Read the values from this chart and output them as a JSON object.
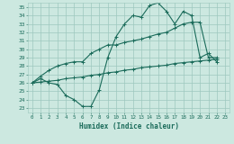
{
  "xlabel": "Humidex (Indice chaleur)",
  "bg_color": "#cce8e0",
  "grid_color": "#9ec8be",
  "line_color": "#1a6b5a",
  "xlim": [
    -0.5,
    23.5
  ],
  "ylim": [
    22.5,
    35.5
  ],
  "yticks": [
    23,
    24,
    25,
    26,
    27,
    28,
    29,
    30,
    31,
    32,
    33,
    34,
    35
  ],
  "xticks": [
    0,
    1,
    2,
    3,
    4,
    5,
    6,
    7,
    8,
    9,
    10,
    11,
    12,
    13,
    14,
    15,
    16,
    17,
    18,
    19,
    20,
    21,
    22,
    23
  ],
  "line1_x": [
    0,
    1,
    2,
    3,
    4,
    5,
    6,
    7,
    8,
    9,
    10,
    11,
    12,
    13,
    14,
    15,
    16,
    17,
    18,
    19,
    20,
    21,
    22
  ],
  "line1_y": [
    26.0,
    26.5,
    26.0,
    25.8,
    24.5,
    24.0,
    23.2,
    23.2,
    25.2,
    29.0,
    31.5,
    33.0,
    34.0,
    33.8,
    35.2,
    35.5,
    34.5,
    33.0,
    34.5,
    34.0,
    29.0,
    29.5,
    28.5
  ],
  "line2_x": [
    0,
    1,
    2,
    3,
    4,
    5,
    6,
    7,
    8,
    9,
    10,
    11,
    12,
    13,
    14,
    15,
    16,
    17,
    18,
    19,
    20,
    21,
    22
  ],
  "line2_y": [
    26.0,
    26.8,
    27.5,
    28.0,
    28.3,
    28.5,
    28.5,
    29.5,
    30.0,
    30.5,
    30.5,
    30.8,
    31.0,
    31.2,
    31.5,
    31.8,
    32.0,
    32.5,
    33.0,
    33.2,
    33.2,
    29.0,
    29.0
  ],
  "line3_x": [
    0,
    1,
    2,
    3,
    4,
    5,
    6,
    7,
    8,
    9,
    10,
    11,
    12,
    13,
    14,
    15,
    16,
    17,
    18,
    19,
    20,
    21,
    22
  ],
  "line3_y": [
    26.0,
    26.1,
    26.2,
    26.3,
    26.5,
    26.6,
    26.7,
    26.9,
    27.0,
    27.2,
    27.3,
    27.5,
    27.6,
    27.8,
    27.9,
    28.0,
    28.1,
    28.3,
    28.4,
    28.5,
    28.6,
    28.7,
    28.8
  ],
  "markersize": 3,
  "linewidth": 0.8
}
